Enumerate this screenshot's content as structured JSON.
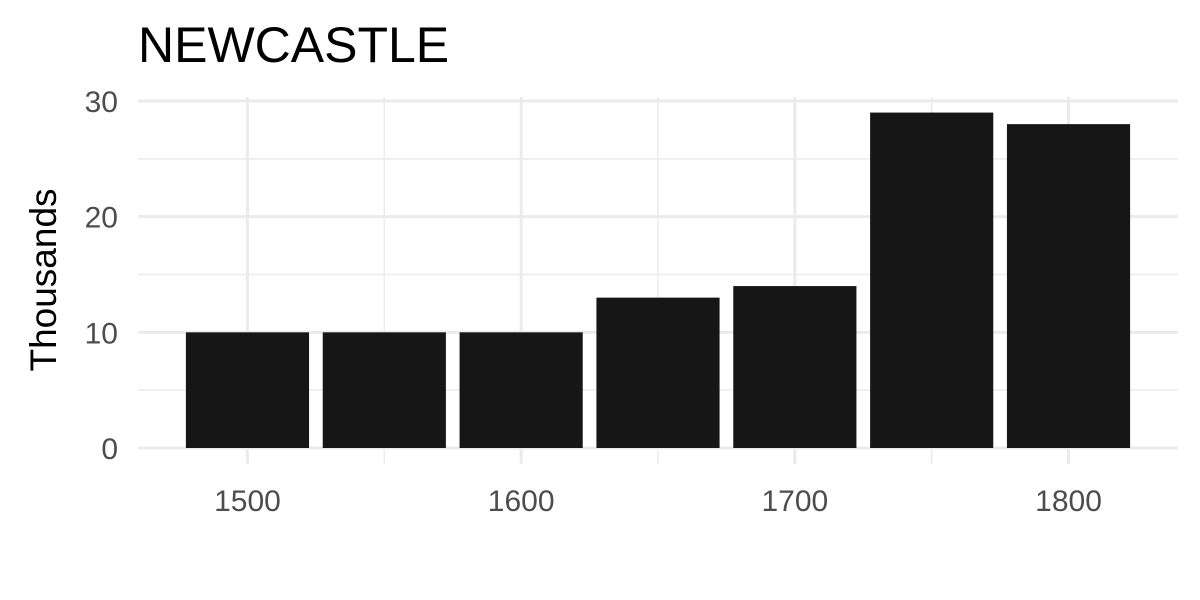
{
  "chart_data": {
    "type": "bar",
    "title": "NEWCASTLE",
    "xlabel": "",
    "ylabel": "Thousands",
    "x": [
      1500,
      1550,
      1600,
      1650,
      1700,
      1750,
      1800
    ],
    "values": [
      10,
      10,
      10,
      13,
      14,
      29,
      28
    ],
    "xlim": [
      1460,
      1840
    ],
    "ylim": [
      0,
      30
    ],
    "x_ticks": [
      1500,
      1600,
      1700,
      1800
    ],
    "x_tick_labels": [
      "1500",
      "1600",
      "1700",
      "1800"
    ],
    "y_ticks": [
      0,
      10,
      20,
      30
    ],
    "y_tick_labels": [
      "0",
      "10",
      "20",
      "30"
    ],
    "grid": true,
    "bar_color": "#161616",
    "grid_color": "#ebebeb",
    "background": "#ffffff"
  }
}
